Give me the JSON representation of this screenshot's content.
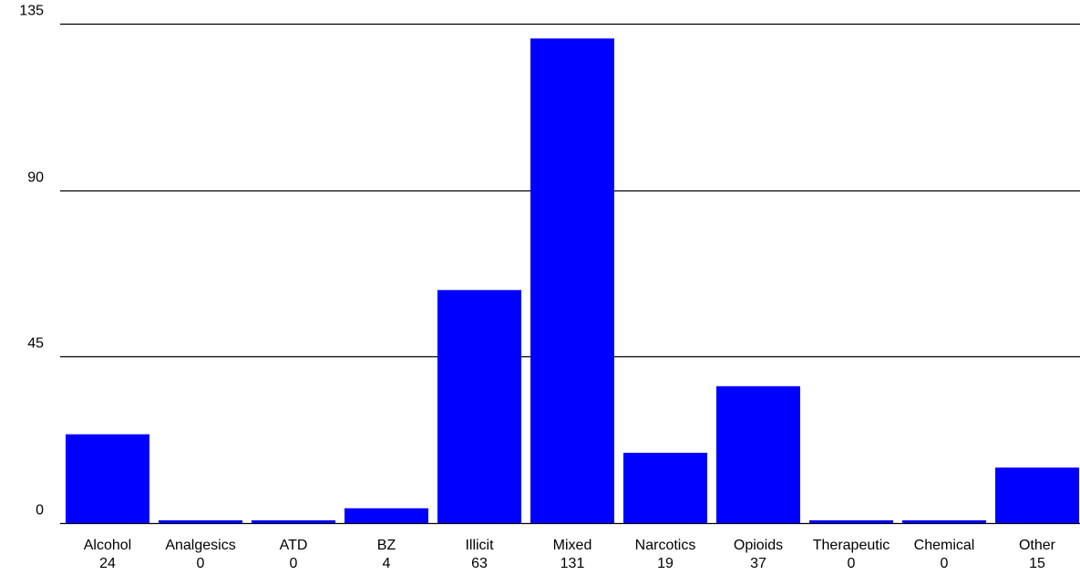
{
  "chart_data": {
    "type": "bar",
    "categories": [
      "Alcohol",
      "Analgesics",
      "ATD",
      "BZ",
      "Illicit",
      "Mixed",
      "Narcotics",
      "Opioids",
      "Therapeutic",
      "Chemical",
      "Other"
    ],
    "values": [
      24,
      0,
      0,
      4,
      63,
      131,
      19,
      37,
      0,
      0,
      15
    ],
    "value_labels": [
      "24",
      "0",
      "0",
      "4",
      "63",
      "131",
      "19",
      "37",
      "0",
      "0",
      "15"
    ],
    "yticks": [
      0,
      45,
      90,
      135
    ],
    "ytick_labels": [
      "0",
      "45",
      "90",
      "135"
    ],
    "ylim": [
      0,
      135
    ],
    "grid": true,
    "legend": "none",
    "bar_color": "#0000ff",
    "grid_color": "#000000",
    "title": "",
    "xlabel": "",
    "ylabel": ""
  }
}
